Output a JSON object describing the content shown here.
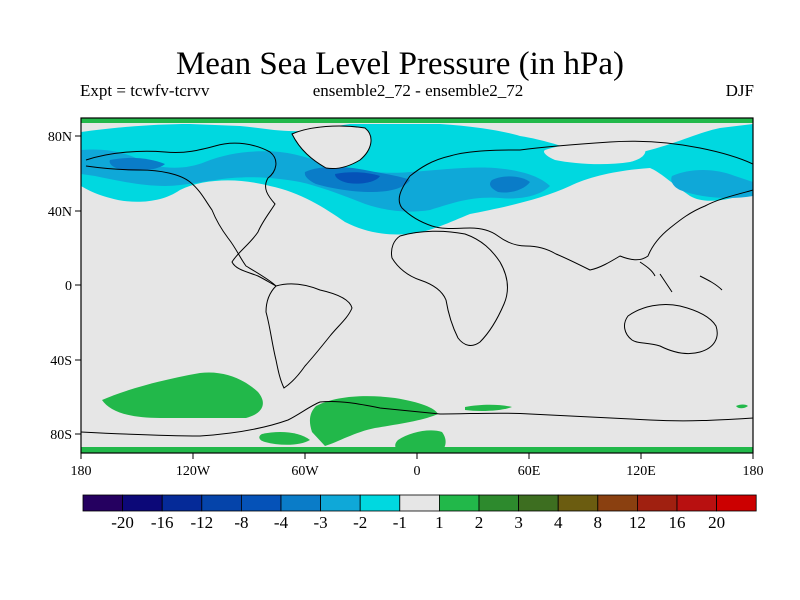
{
  "figure": {
    "title": "Mean Sea Level Pressure (in hPa)",
    "subtitle_left": "Expt = tcwfv-tcrvv",
    "subtitle_center": "ensemble2_72 - ensemble2_72",
    "subtitle_right": "DJF"
  },
  "map": {
    "longitude_ticks": [
      "180",
      "120W",
      "60W",
      "0",
      "60E",
      "120E",
      "180"
    ],
    "latitude_ticks": [
      "80N",
      "40N",
      "0",
      "40S",
      "80S"
    ],
    "colors": {
      "neutral": "#e6e6e6",
      "neg1": "#00d8e0",
      "neg2": "#0fa8d8",
      "neg3": "#0a7cc8",
      "neg4": "#0552b8",
      "pos1": "#22b84a",
      "coast": "#000000"
    }
  },
  "colorbar": {
    "labels": [
      "-20",
      "-16",
      "-12",
      "-8",
      "-4",
      "-3",
      "-2",
      "-1",
      "1",
      "2",
      "3",
      "4",
      "8",
      "12",
      "16",
      "20"
    ],
    "colors": [
      "#250060",
      "#0c0878",
      "#052a98",
      "#0544aa",
      "#0552b8",
      "#0a7cc8",
      "#0fa8d8",
      "#00d8e0",
      "#e6e6e6",
      "#22b84a",
      "#2d8a2d",
      "#3d6e20",
      "#6b5c10",
      "#8a4010",
      "#a02010",
      "#b81010",
      "#cc0000"
    ]
  }
}
